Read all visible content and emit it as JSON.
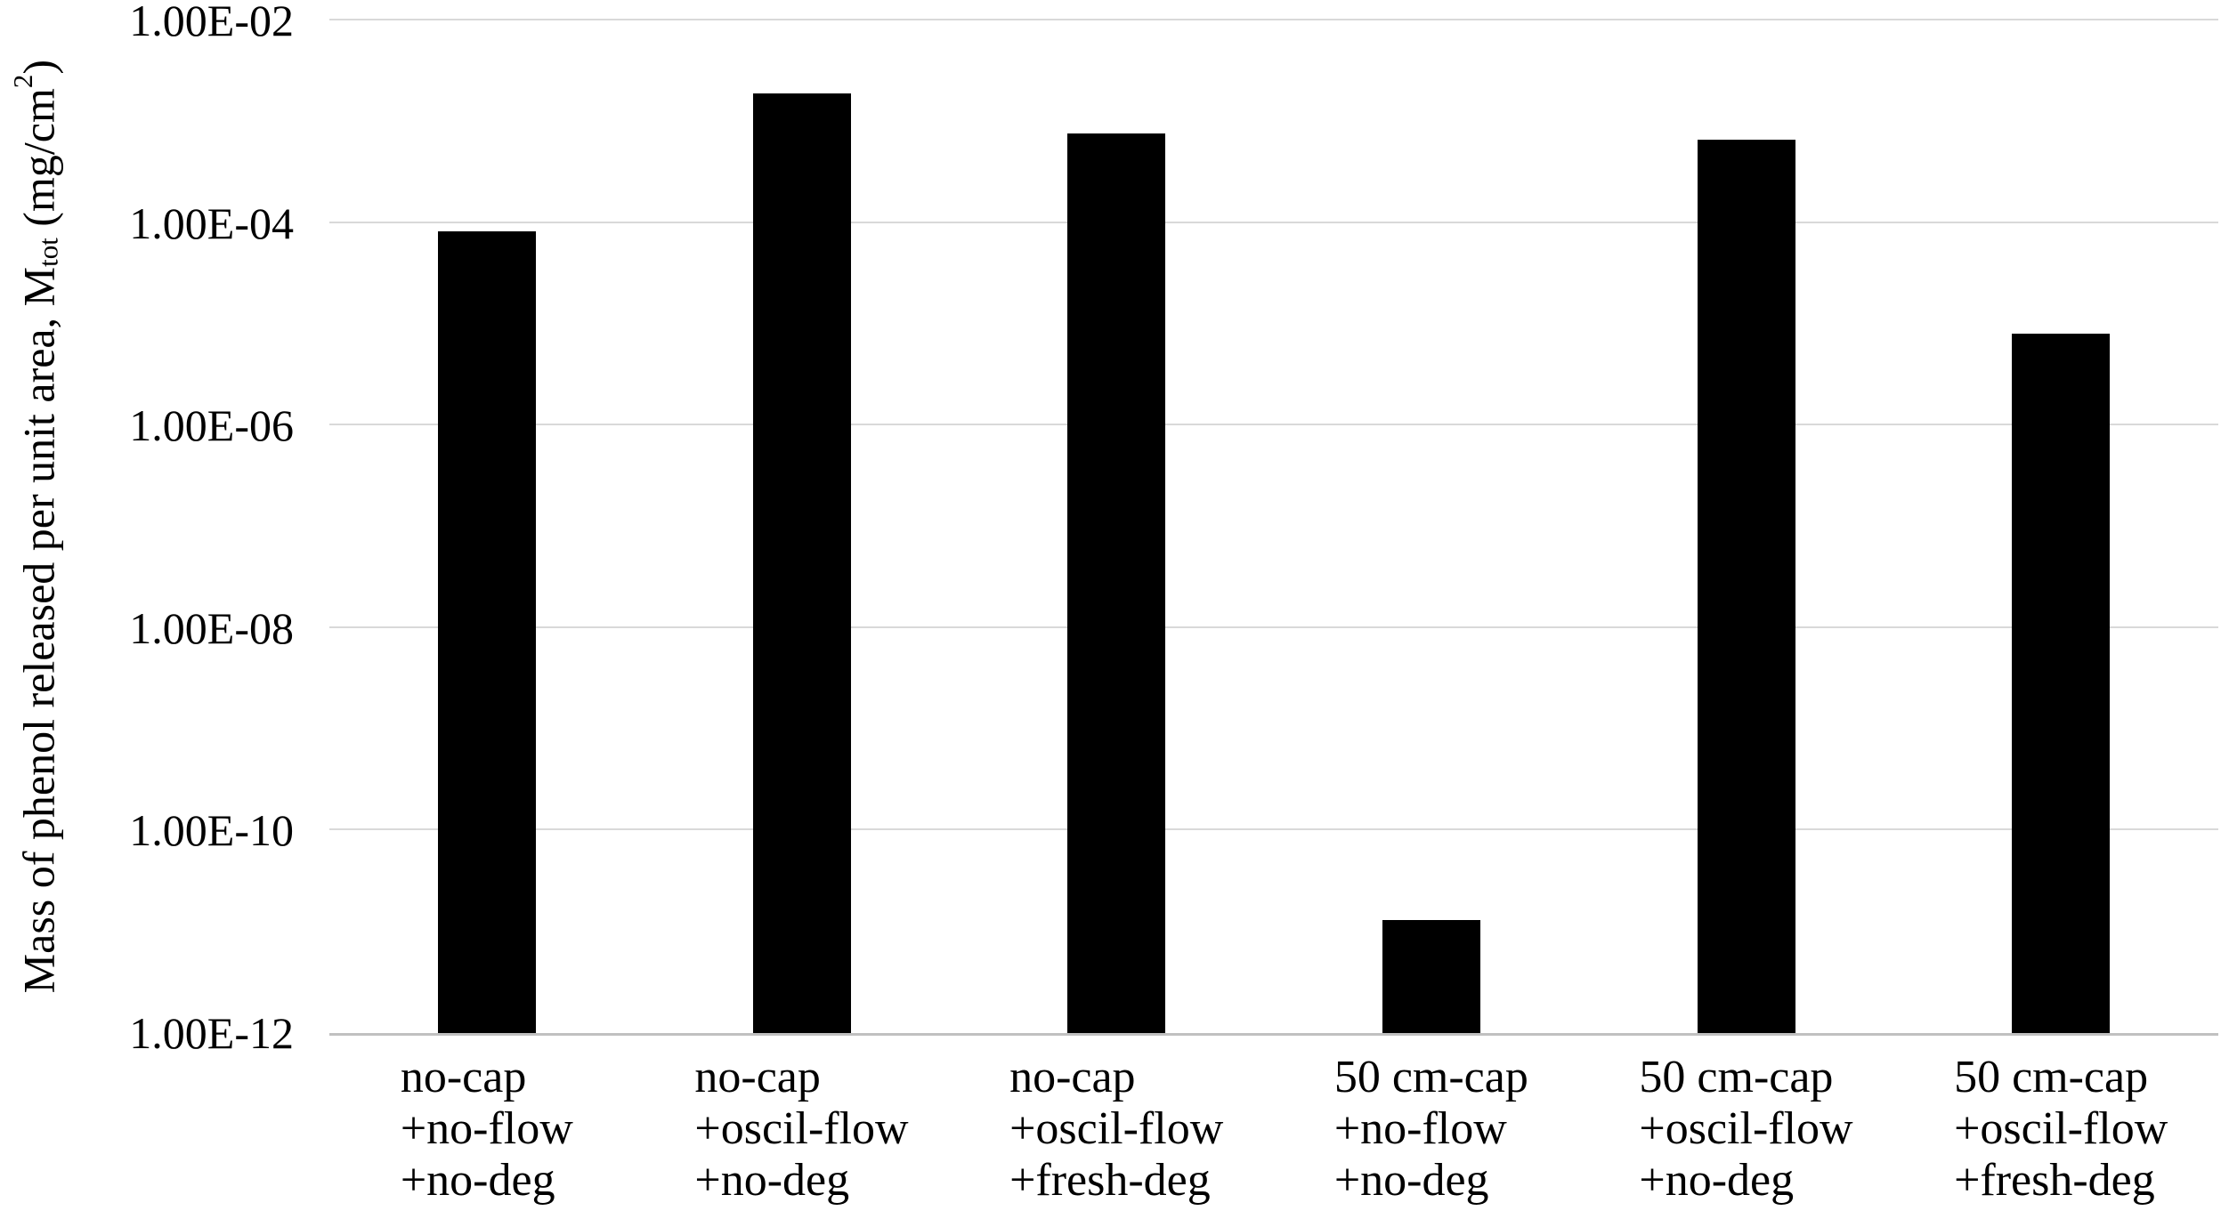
{
  "chart_data": {
    "type": "bar",
    "title": "",
    "xlabel": "",
    "ylabel": "Mass of phenol released per unit area, Mtot (mg/cm2)",
    "ylabel_rich": {
      "prefix": "Mass of phenol released per unit area, M",
      "subscript": "tot",
      "mid": " (mg/cm",
      "superscript": "2",
      "suffix": ")"
    },
    "yscale": "log",
    "ylim": [
      1e-12,
      0.01
    ],
    "grid": "horizontal-major-only",
    "legend_position": "none",
    "colors": {
      "bar": "#000000",
      "gridline": "#d9d9d9",
      "axis_line": "#c0c0c0",
      "text": "#000000",
      "background": "#ffffff"
    },
    "yticks": [
      {
        "label": "1.00E-02",
        "exponent": -2
      },
      {
        "label": "1.00E-04",
        "exponent": -4
      },
      {
        "label": "1.00E-06",
        "exponent": -6
      },
      {
        "label": "1.00E-08",
        "exponent": -8
      },
      {
        "label": "1.00E-10",
        "exponent": -10
      },
      {
        "label": "1.00E-12",
        "exponent": -12
      }
    ],
    "categories": [
      {
        "lines": [
          "no-cap",
          "+no-flow",
          "+no-deg"
        ]
      },
      {
        "lines": [
          "no-cap",
          "+oscil-flow",
          "+no-deg"
        ]
      },
      {
        "lines": [
          "no-cap",
          "+oscil-flow",
          "+fresh-deg"
        ]
      },
      {
        "lines": [
          "50 cm-cap",
          "+no-flow",
          "+no-deg"
        ]
      },
      {
        "lines": [
          "50 cm-cap",
          "+oscil-flow",
          "+no-deg"
        ]
      },
      {
        "lines": [
          "50 cm-cap",
          "+oscil-flow",
          "+fresh-deg"
        ]
      }
    ],
    "series": [
      {
        "name": "Mass of phenol released per unit area",
        "values": [
          8.2e-05,
          0.0019,
          0.00076,
          1.3e-11,
          0.00066,
          8.1e-06
        ]
      }
    ]
  }
}
